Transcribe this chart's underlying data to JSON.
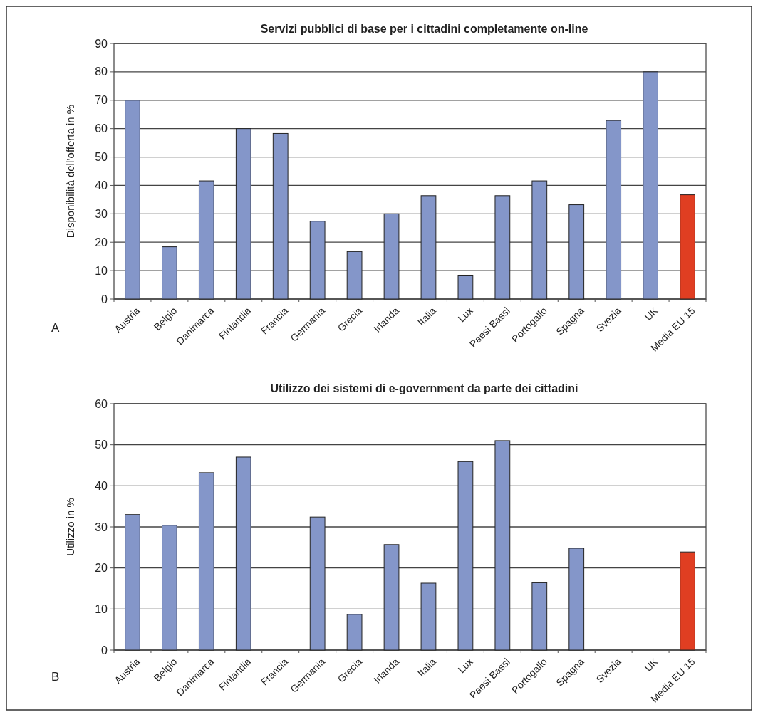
{
  "chart_data": [
    {
      "type": "bar",
      "title": "Servizi pubblici di base per i cittadini completamente on-line",
      "ylabel": "Disponibilità dell’offerta in %",
      "annotations": [
        "A"
      ],
      "categories": [
        "Austria",
        "Belgio",
        "Danimarca",
        "Finlandia",
        "Francia",
        "Germania",
        "Grecia",
        "Irlanda",
        "Italia",
        "Lux",
        "Paesi Bassi",
        "Portogallo",
        "Spagna",
        "Svezia",
        "UK",
        "Media EU 15"
      ],
      "values": [
        70,
        18.4,
        41.6,
        60,
        58.3,
        27.4,
        16.7,
        30,
        36.4,
        8.4,
        36.4,
        41.6,
        33.2,
        62.9,
        80,
        36.7
      ],
      "colors": [
        "#8496c9",
        "#8496c9",
        "#8496c9",
        "#8496c9",
        "#8496c9",
        "#8496c9",
        "#8496c9",
        "#8496c9",
        "#8496c9",
        "#8496c9",
        "#8496c9",
        "#8496c9",
        "#8496c9",
        "#8496c9",
        "#8496c9",
        "#e03e22"
      ],
      "ylim": [
        0,
        90
      ],
      "yticks": [
        0,
        10,
        20,
        30,
        40,
        50,
        60,
        70,
        80,
        90
      ],
      "grid": "y"
    },
    {
      "type": "bar",
      "title": "Utilizzo dei sistemi di e-government da parte dei cittadini",
      "ylabel": "Utilizzo in %",
      "annotations": [
        "B"
      ],
      "categories": [
        "Austria",
        "Belgio",
        "Danimarca",
        "Finlandia",
        "Francia",
        "Germania",
        "Grecia",
        "Irlanda",
        "Italia",
        "Lux",
        "Paesi Bassi",
        "Portogallo",
        "Spagna",
        "Svezia",
        "UK",
        "Media EU 15"
      ],
      "values": [
        33,
        30.4,
        43.2,
        47,
        null,
        32.4,
        8.7,
        25.7,
        16.3,
        45.9,
        51,
        16.4,
        24.8,
        null,
        null,
        23.9
      ],
      "colors": [
        "#8496c9",
        "#8496c9",
        "#8496c9",
        "#8496c9",
        null,
        "#8496c9",
        "#8496c9",
        "#8496c9",
        "#8496c9",
        "#8496c9",
        "#8496c9",
        "#8496c9",
        "#8496c9",
        null,
        null,
        "#e03e22"
      ],
      "ylim": [
        0,
        60
      ],
      "yticks": [
        0,
        10,
        20,
        30,
        40,
        50,
        60
      ],
      "grid": "y"
    }
  ]
}
